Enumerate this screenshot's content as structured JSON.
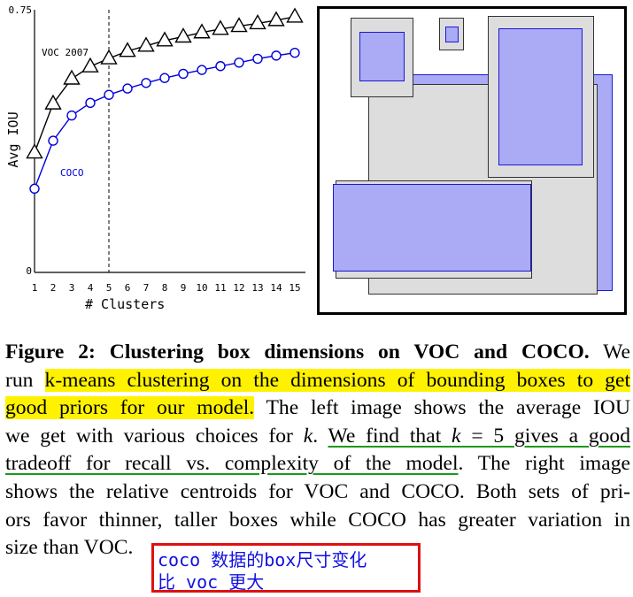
{
  "chart_data": {
    "type": "line",
    "xlabel": "# Clusters",
    "ylabel": "Avg IOU",
    "categories": [
      1,
      2,
      3,
      4,
      5,
      6,
      7,
      8,
      9,
      10,
      11,
      12,
      13,
      14,
      15
    ],
    "y_tick_labels": [
      "0",
      "0.75"
    ],
    "ylim": [
      0,
      0.75
    ],
    "annotations": [
      {
        "type": "vertical-dashed-line",
        "x": 5
      }
    ],
    "series": [
      {
        "name": "VOC 2007",
        "marker": "triangle",
        "color": "#000000",
        "values": [
          0.342,
          0.482,
          0.553,
          0.588,
          0.611,
          0.632,
          0.647,
          0.662,
          0.673,
          0.685,
          0.695,
          0.703,
          0.711,
          0.72,
          0.73
        ]
      },
      {
        "name": "COCO",
        "marker": "circle",
        "color": "#0000dd",
        "values": [
          0.239,
          0.376,
          0.448,
          0.484,
          0.507,
          0.525,
          0.541,
          0.555,
          0.567,
          0.578,
          0.589,
          0.599,
          0.61,
          0.619,
          0.627
        ]
      }
    ]
  },
  "centroid_panel": {
    "colors": {
      "voc_fill": "#dddddd",
      "coco_fill": "#aaaaf5",
      "coco_border": "#1a1ad6"
    }
  },
  "caption": {
    "label": "Figure 2:",
    "title": "Clustering box dimensions on VOC and COCO.",
    "t1": " We",
    "t2": "run ",
    "h1": "k-means clustering on the dimensions of bounding boxes to get",
    "h2": "good priors for our model.",
    "t3": " The left image shows the average IOU",
    "t4": "we get with various choices for ",
    "k1": "k",
    "t5": ". ",
    "u1a": "We find that ",
    "k2": "k",
    "u1b": " = 5 gives a good",
    "u2": "tradeoff for recall vs. complexity of the model",
    "t6": ". The right image",
    "t7": "shows the relative centroids for VOC and COCO. Both sets of pri-",
    "t8": "ors favor thinner, taller boxes while COCO has greater variation in",
    "t9": "size than VOC."
  },
  "annotation": {
    "line1": "coco 数据的box尺寸变化",
    "line2": "比 voc 更大",
    "text_color": "#1010e0",
    "border_color": "#e01010"
  }
}
